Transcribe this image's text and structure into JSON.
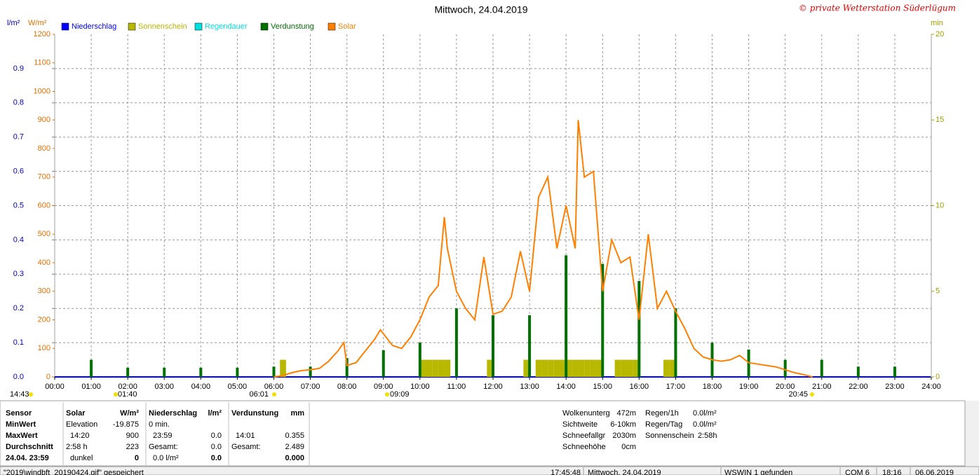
{
  "chart_data": {
    "type": "line",
    "title": "Mittwoch, 24.04.2019",
    "credit": "© private Wetterstation Süderlügum",
    "y_label": "l/m²",
    "solar_label": "W/m²",
    "y2_label": "min",
    "xlim": [
      "00:00",
      "24:00"
    ],
    "xticks": [
      "00:00",
      "01:00",
      "02:00",
      "03:00",
      "04:00",
      "05:00",
      "06:00",
      "07:00",
      "08:00",
      "09:00",
      "10:00",
      "11:00",
      "12:00",
      "13:00",
      "14:00",
      "15:00",
      "16:00",
      "17:00",
      "18:00",
      "19:00",
      "20:00",
      "21:00",
      "22:00",
      "23:00",
      "24:00"
    ],
    "ylim": [
      0,
      1
    ],
    "yticks": [
      {
        "value": 0,
        "label": "0.0"
      },
      0.1,
      0.2,
      0.3,
      0.4,
      0.5,
      0.6,
      0.7,
      0.8,
      0.9
    ],
    "solar_ylim": [
      0,
      1200
    ],
    "solar_yticks": [
      0,
      100,
      200,
      300,
      400,
      500,
      600,
      700,
      800,
      900,
      1000,
      1100,
      1200
    ],
    "y2lim": [
      0,
      20
    ],
    "y2ticks": [
      0,
      5,
      10,
      15,
      20
    ],
    "grid": true,
    "markers": [
      "14:43",
      "01:40",
      "06:01",
      "09:09",
      "20:45"
    ],
    "series": [
      {
        "name": "Niederschlag",
        "color": "#0000ff",
        "kind": "line",
        "x": [
          "00:00",
          "23:59"
        ],
        "values": [
          0,
          0
        ]
      },
      {
        "name": "Sonnenschein",
        "color": "#b8b800",
        "kind": "bar",
        "axis": "y2",
        "x": [
          "06:10",
          "10:00",
          "10:10",
          "10:20",
          "10:30",
          "10:40",
          "11:50",
          "12:50",
          "13:10",
          "13:20",
          "13:30",
          "13:40",
          "13:50",
          "14:00",
          "14:10",
          "14:20",
          "14:30",
          "14:40",
          "14:50",
          "15:20",
          "15:30",
          "15:40",
          "15:50",
          "16:40",
          "16:50"
        ],
        "values": [
          1,
          1,
          1,
          1,
          1,
          1,
          1,
          1,
          1,
          1,
          1,
          1,
          1,
          1,
          1,
          1,
          1,
          1,
          1,
          1,
          1,
          1,
          1,
          1,
          1
        ]
      },
      {
        "name": "Regendauer",
        "color": "#00e0e0"
      },
      {
        "name": "Verdunstung",
        "color": "#007000",
        "kind": "bar",
        "x": [
          "01:00",
          "02:00",
          "03:00",
          "04:00",
          "05:00",
          "06:00",
          "07:00",
          "08:00",
          "09:00",
          "10:00",
          "11:00",
          "12:00",
          "13:00",
          "14:00",
          "15:00",
          "16:00",
          "17:00",
          "18:00",
          "19:00",
          "20:00",
          "21:00",
          "22:00",
          "23:00"
        ],
        "values": [
          0.05,
          0.027,
          0.027,
          0.027,
          0.027,
          0.03,
          0.03,
          0.055,
          0.078,
          0.1,
          0.2,
          0.18,
          0.18,
          0.355,
          0.33,
          0.28,
          0.2,
          0.1,
          0.08,
          0.05,
          0.05,
          0.03,
          0.03
        ]
      },
      {
        "name": "Solar",
        "color": "#ff8000",
        "kind": "line",
        "axis": "solar",
        "x": [
          "06:00",
          "06:15",
          "06:30",
          "06:45",
          "07:00",
          "07:15",
          "07:30",
          "07:45",
          "07:55",
          "08:00",
          "08:15",
          "08:30",
          "08:45",
          "08:55",
          "09:15",
          "09:30",
          "09:45",
          "10:00",
          "10:15",
          "10:30",
          "10:40",
          "10:45",
          "11:00",
          "11:15",
          "11:30",
          "11:45",
          "12:00",
          "12:15",
          "12:30",
          "12:45",
          "13:00",
          "13:15",
          "13:30",
          "13:45",
          "14:00",
          "14:15",
          "14:20",
          "14:30",
          "14:45",
          "15:00",
          "15:15",
          "15:30",
          "15:45",
          "16:00",
          "16:15",
          "16:30",
          "16:45",
          "17:00",
          "17:15",
          "17:30",
          "17:45",
          "18:00",
          "18:15",
          "18:30",
          "18:45",
          "19:00",
          "19:15",
          "19:30",
          "19:45",
          "20:00",
          "20:15",
          "20:30",
          "20:45"
        ],
        "values": [
          0,
          5,
          15,
          22,
          25,
          30,
          55,
          90,
          120,
          40,
          50,
          90,
          130,
          165,
          110,
          100,
          140,
          200,
          280,
          320,
          560,
          450,
          300,
          240,
          200,
          420,
          220,
          230,
          280,
          440,
          300,
          630,
          700,
          450,
          600,
          450,
          900,
          700,
          720,
          300,
          480,
          400,
          420,
          200,
          500,
          240,
          300,
          230,
          170,
          100,
          70,
          60,
          55,
          60,
          75,
          50,
          45,
          40,
          35,
          25,
          15,
          8,
          0
        ]
      }
    ]
  },
  "stats": {
    "label_col": [
      "Sensor",
      "MinWert",
      "MaxWert",
      "Durchschnitt",
      "24.04. 23:59"
    ],
    "columns": [
      {
        "head": {
          "l": "Solar",
          "r": "W/m²"
        },
        "rows": [
          {
            "l": "Elevation",
            "r": "-19.875"
          },
          {
            "l": "14:20",
            "r": "900"
          },
          {
            "l": "2:58 h",
            "r": "223"
          },
          {
            "l": "dunkel",
            "r": "0"
          }
        ]
      },
      {
        "head": {
          "l": "Niederschlag",
          "r": "l/m²"
        },
        "rows": [
          {
            "l": "0 min."
          },
          {
            "l": "23:59",
            "r": "0.0"
          },
          {
            "l": "Gesamt:",
            "r": "0.0"
          },
          {
            "l": "0.0 l/m²",
            "r": "0.0"
          }
        ]
      },
      {
        "head": {
          "l": "Verdunstung",
          "r": "mm"
        },
        "rows": [
          {},
          {
            "l": "14:01",
            "r": "0.355"
          },
          {
            "l": "Gesamt:",
            "r": "2.489"
          },
          {
            "r": "0.000"
          }
        ]
      }
    ],
    "extra_1": [
      {
        "l": "Wolkenunterg",
        "r": "472m"
      },
      {
        "l": "Sichtweite",
        "r": "6-10km"
      },
      {
        "l": "Schneefallgr",
        "r": "2030m"
      },
      {
        "l": "Schneehöhe",
        "r": "0cm"
      }
    ],
    "extra_2": [
      {
        "l": "Regen/1h",
        "r": "0.0l/m²"
      },
      {
        "l": "Regen/Tag",
        "r": "0.0l/m²"
      },
      {
        "l": "Sonnenschein",
        "r": "2:58h"
      }
    ]
  },
  "status_bar": [
    "\"2019\\windbft_20190424.gif\" gespeichert",
    "17:45:48",
    "Mittwoch, 24.04.2019",
    "WSWIN 1 gefunden",
    "COM 6",
    "18:16",
    "06.06.2019"
  ]
}
